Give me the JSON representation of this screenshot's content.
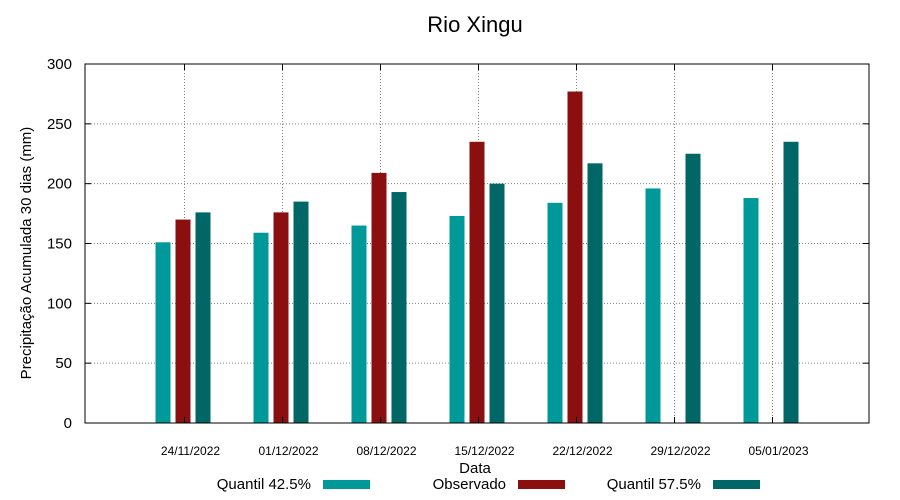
{
  "chart_data": {
    "type": "bar",
    "title": "Rio Xingu",
    "xlabel": "Data",
    "ylabel": "Precipitação Acumulada 30 dias (mm)",
    "ylim": [
      0,
      300
    ],
    "yticks": [
      0,
      50,
      100,
      150,
      200,
      250,
      300
    ],
    "grid": true,
    "legend_position": "bottom",
    "categories": [
      "24/11/2022",
      "01/12/2022",
      "08/12/2022",
      "15/12/2022",
      "22/12/2022",
      "29/12/2022",
      "05/01/2023"
    ],
    "series": [
      {
        "name": "Quantil 42.5%",
        "color": "#009999",
        "values": [
          151,
          159,
          165,
          173,
          184,
          196,
          188
        ]
      },
      {
        "name": "Observado",
        "color": "#8b0f0f",
        "values": [
          170,
          176,
          209,
          235,
          277,
          null,
          null
        ]
      },
      {
        "name": "Quantil 57.5%",
        "color": "#006666",
        "values": [
          176,
          185,
          193,
          200,
          217,
          225,
          235
        ]
      }
    ]
  }
}
